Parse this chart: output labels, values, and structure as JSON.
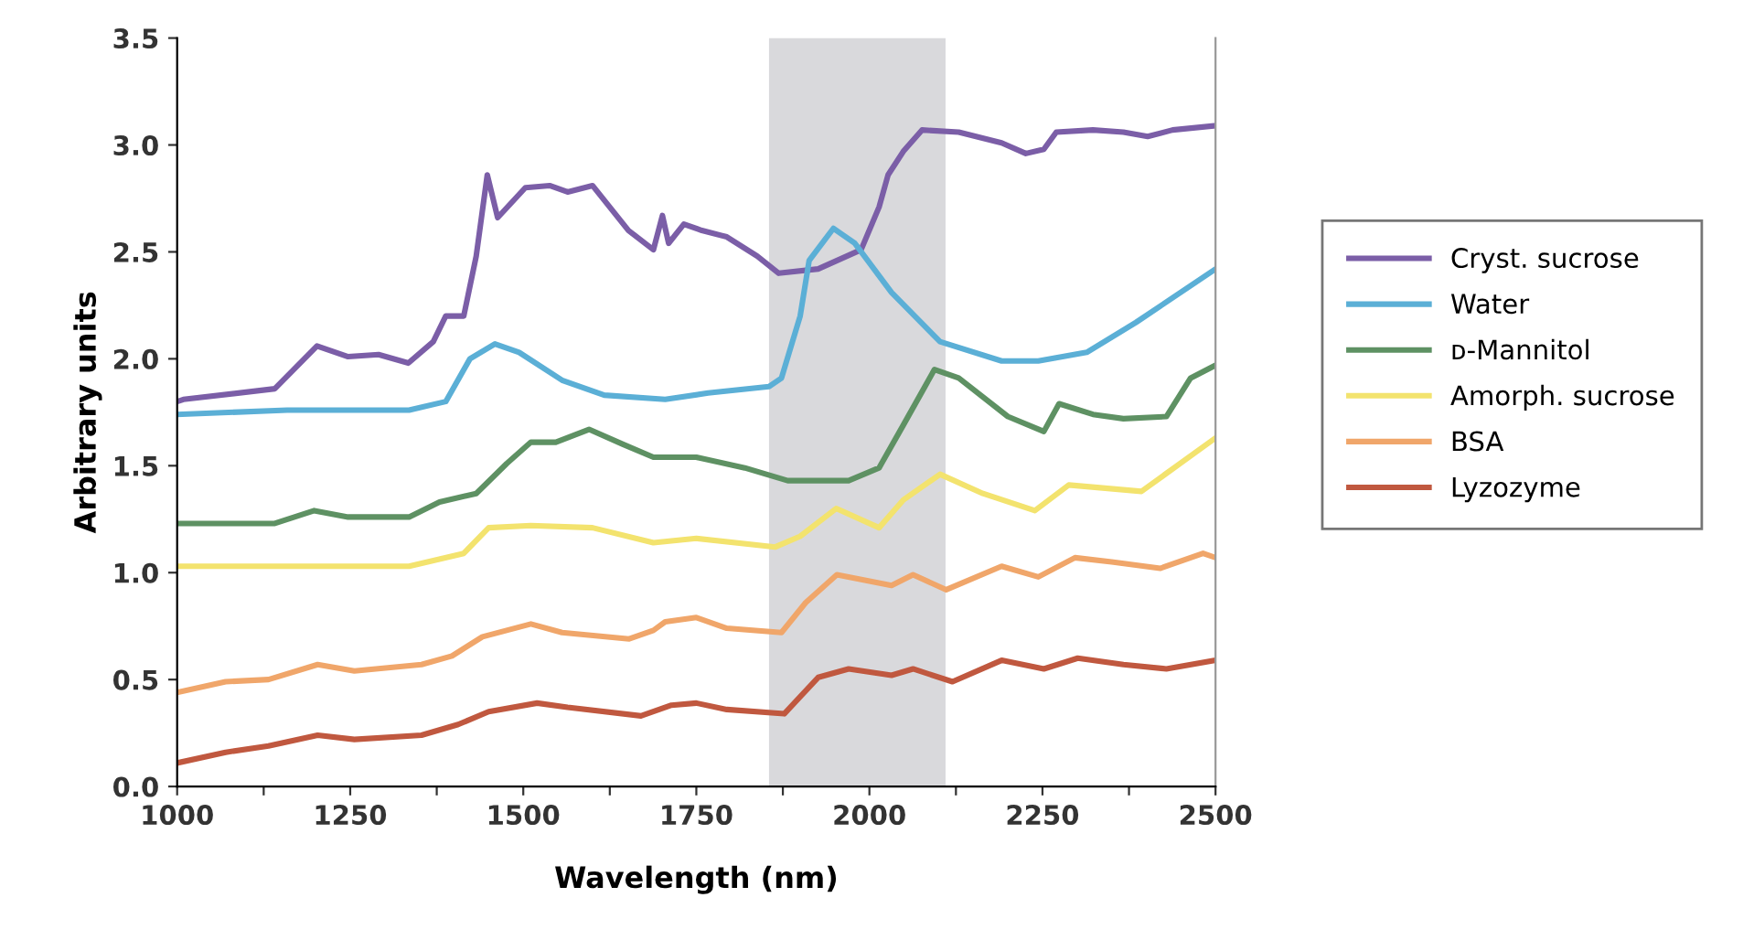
{
  "chart_data": {
    "type": "line",
    "xlabel": "Wavelength (nm)",
    "ylabel": "Arbitrary units",
    "xlim": [
      1000,
      2500
    ],
    "ylim": [
      0,
      3.5
    ],
    "xticks": [
      1000,
      {
        "value": 1125,
        "label": null
      },
      1250,
      {
        "value": 1375,
        "label": null
      },
      1500,
      {
        "value": 1625,
        "label": null
      },
      1750,
      {
        "value": 1875,
        "label": null
      },
      2000,
      {
        "value": 2125,
        "label": null
      },
      2250,
      {
        "value": 2375,
        "label": null
      },
      2500
    ],
    "yticks": [
      {
        "value": 0,
        "label": "0.0"
      },
      0.5,
      {
        "value": 1,
        "label": "1.0"
      },
      1.5,
      {
        "value": 2,
        "label": "2.0"
      },
      2.5,
      {
        "value": 3,
        "label": "3.0"
      },
      3.5
    ],
    "grid": false,
    "legend": "right",
    "marker": "none",
    "line_style": "solid",
    "bands": [
      {
        "axis": "x",
        "from": 1855,
        "to": 2110,
        "color": "#d9d9dc"
      }
    ],
    "series": [
      {
        "name": "Cryst. sucrose",
        "color": "#7b5ea7",
        "x": [
          1000,
          1009,
          1141,
          1202,
          1247,
          1291,
          1334,
          1370,
          1388,
          1414,
          1432,
          1448,
          1463,
          1503,
          1538,
          1564,
          1600,
          1652,
          1688,
          1701,
          1710,
          1732,
          1758,
          1794,
          1838,
          1869,
          1926,
          1988,
          2014,
          2027,
          2049,
          2076,
          2129,
          2191,
          2226,
          2252,
          2270,
          2323,
          2367,
          2402,
          2438,
          2500
        ],
        "values": [
          1.8,
          1.81,
          1.86,
          2.06,
          2.01,
          2.02,
          1.98,
          2.08,
          2.2,
          2.2,
          2.48,
          2.86,
          2.66,
          2.8,
          2.81,
          2.78,
          2.81,
          2.6,
          2.51,
          2.67,
          2.54,
          2.63,
          2.6,
          2.57,
          2.48,
          2.4,
          2.42,
          2.51,
          2.71,
          2.86,
          2.97,
          3.07,
          3.06,
          3.01,
          2.96,
          2.98,
          3.06,
          3.07,
          3.06,
          3.04,
          3.07,
          3.09
        ]
      },
      {
        "name": "Water",
        "color": "#5bafd6",
        "x": [
          1000,
          1159,
          1335,
          1388,
          1423,
          1459,
          1494,
          1556,
          1617,
          1705,
          1767,
          1855,
          1873,
          1900,
          1913,
          1948,
          1979,
          2032,
          2102,
          2191,
          2244,
          2314,
          2385,
          2500
        ],
        "values": [
          1.74,
          1.76,
          1.76,
          1.8,
          2.0,
          2.07,
          2.03,
          1.9,
          1.83,
          1.81,
          1.84,
          1.87,
          1.91,
          2.2,
          2.46,
          2.61,
          2.54,
          2.31,
          2.08,
          1.99,
          1.99,
          2.03,
          2.17,
          2.42
        ]
      },
      {
        "name": "ᴅ-Mannitol",
        "color": "#5e9163",
        "x": [
          1000,
          1141,
          1198,
          1247,
          1335,
          1379,
          1432,
          1476,
          1511,
          1547,
          1595,
          1644,
          1688,
          1750,
          1820,
          1882,
          1970,
          2014,
          2049,
          2094,
          2129,
          2200,
          2252,
          2274,
          2323,
          2367,
          2429,
          2464,
          2500
        ],
        "values": [
          1.23,
          1.23,
          1.29,
          1.26,
          1.26,
          1.33,
          1.37,
          1.51,
          1.61,
          1.61,
          1.67,
          1.6,
          1.54,
          1.54,
          1.49,
          1.43,
          1.43,
          1.49,
          1.69,
          1.95,
          1.91,
          1.73,
          1.66,
          1.79,
          1.74,
          1.72,
          1.73,
          1.91,
          1.97
        ]
      },
      {
        "name": "Amorph. sucrose",
        "color": "#f3e36e",
        "x": [
          1000,
          1335,
          1414,
          1450,
          1511,
          1600,
          1688,
          1750,
          1864,
          1900,
          1952,
          2014,
          2049,
          2102,
          2164,
          2239,
          2288,
          2393,
          2500
        ],
        "values": [
          1.03,
          1.03,
          1.09,
          1.21,
          1.22,
          1.21,
          1.14,
          1.16,
          1.12,
          1.17,
          1.3,
          1.21,
          1.34,
          1.46,
          1.37,
          1.29,
          1.41,
          1.38,
          1.63
        ]
      },
      {
        "name": "BSA",
        "color": "#f0a66a",
        "x": [
          1000,
          1070,
          1132,
          1203,
          1256,
          1353,
          1397,
          1441,
          1511,
          1556,
          1653,
          1688,
          1705,
          1750,
          1794,
          1873,
          1908,
          1953,
          2032,
          2063,
          2111,
          2191,
          2244,
          2297,
          2350,
          2420,
          2482,
          2500
        ],
        "values": [
          0.44,
          0.49,
          0.5,
          0.57,
          0.54,
          0.57,
          0.61,
          0.7,
          0.76,
          0.72,
          0.69,
          0.73,
          0.77,
          0.79,
          0.74,
          0.72,
          0.86,
          0.99,
          0.94,
          0.99,
          0.92,
          1.03,
          0.98,
          1.07,
          1.05,
          1.02,
          1.09,
          1.07
        ]
      },
      {
        "name": "Lyzozyme",
        "color": "#c0583f",
        "x": [
          1000,
          1070,
          1132,
          1203,
          1256,
          1353,
          1406,
          1450,
          1520,
          1564,
          1670,
          1714,
          1750,
          1794,
          1877,
          1926,
          1970,
          2032,
          2063,
          2120,
          2191,
          2252,
          2301,
          2367,
          2429,
          2500
        ],
        "values": [
          0.11,
          0.16,
          0.19,
          0.24,
          0.22,
          0.24,
          0.29,
          0.35,
          0.39,
          0.37,
          0.33,
          0.38,
          0.39,
          0.36,
          0.34,
          0.51,
          0.55,
          0.52,
          0.55,
          0.49,
          0.59,
          0.55,
          0.6,
          0.57,
          0.55,
          0.59
        ]
      }
    ]
  }
}
